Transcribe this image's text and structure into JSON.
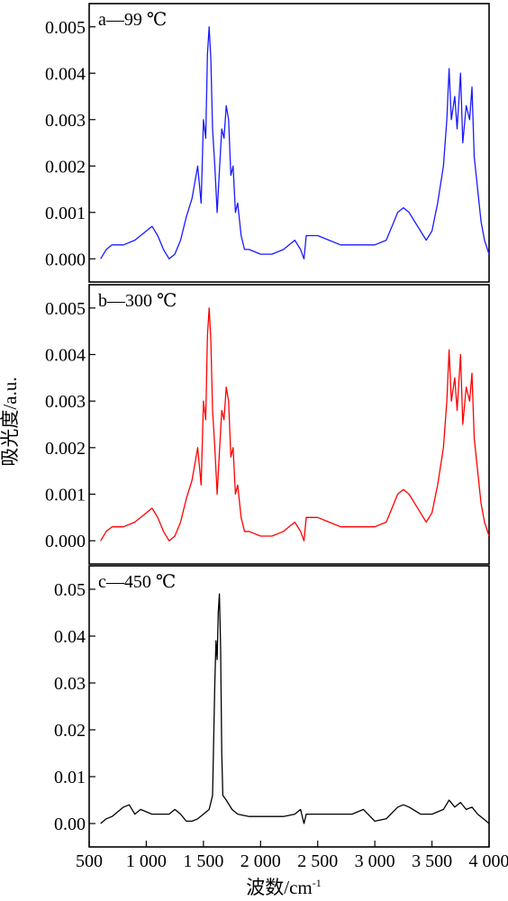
{
  "chart_data": {
    "type": "line",
    "figure_xlabel": "波数/cm",
    "figure_xlabel_sup": "-1",
    "figure_ylabel": "吸光度/a.u.",
    "x_range": [
      500,
      4000
    ],
    "x_ticks": [
      500,
      1000,
      1500,
      2000,
      2500,
      3000,
      3500,
      4000
    ],
    "x_tick_labels": [
      "500",
      "1 000",
      "1 500",
      "2 000",
      "2 500",
      "3 000",
      "3 500",
      "4 000"
    ],
    "panels": [
      {
        "label": "a—99 ℃",
        "color": "#1a1aff",
        "ylim": [
          -0.0005,
          0.0055
        ],
        "y_ticks": [
          0.0,
          0.001,
          0.002,
          0.003,
          0.004,
          0.005
        ],
        "y_tick_labels": [
          "0.000",
          "0.001",
          "0.002",
          "0.003",
          "0.004",
          "0.005"
        ],
        "points": [
          [
            600,
            0.0
          ],
          [
            650,
            0.0002
          ],
          [
            700,
            0.0003
          ],
          [
            800,
            0.0003
          ],
          [
            900,
            0.0004
          ],
          [
            1000,
            0.0006
          ],
          [
            1050,
            0.0007
          ],
          [
            1100,
            0.0005
          ],
          [
            1150,
            0.0002
          ],
          [
            1200,
            0.0
          ],
          [
            1250,
            0.0001
          ],
          [
            1300,
            0.0004
          ],
          [
            1350,
            0.0009
          ],
          [
            1400,
            0.0013
          ],
          [
            1450,
            0.002
          ],
          [
            1480,
            0.0012
          ],
          [
            1500,
            0.003
          ],
          [
            1520,
            0.0026
          ],
          [
            1535,
            0.0044
          ],
          [
            1550,
            0.005
          ],
          [
            1565,
            0.0043
          ],
          [
            1580,
            0.0028
          ],
          [
            1600,
            0.002
          ],
          [
            1620,
            0.001
          ],
          [
            1640,
            0.0019
          ],
          [
            1660,
            0.0028
          ],
          [
            1680,
            0.0026
          ],
          [
            1700,
            0.0033
          ],
          [
            1720,
            0.003
          ],
          [
            1740,
            0.0018
          ],
          [
            1760,
            0.002
          ],
          [
            1780,
            0.001
          ],
          [
            1800,
            0.0012
          ],
          [
            1830,
            0.0005
          ],
          [
            1860,
            0.0002
          ],
          [
            1900,
            0.0002
          ],
          [
            2000,
            0.0001
          ],
          [
            2100,
            0.0001
          ],
          [
            2200,
            0.0002
          ],
          [
            2300,
            0.0004
          ],
          [
            2350,
            0.0002
          ],
          [
            2380,
            0.0
          ],
          [
            2400,
            0.0005
          ],
          [
            2500,
            0.0005
          ],
          [
            2600,
            0.0004
          ],
          [
            2700,
            0.0003
          ],
          [
            2800,
            0.0003
          ],
          [
            2900,
            0.0003
          ],
          [
            3000,
            0.0003
          ],
          [
            3100,
            0.0004
          ],
          [
            3150,
            0.0007
          ],
          [
            3200,
            0.001
          ],
          [
            3250,
            0.0011
          ],
          [
            3300,
            0.001
          ],
          [
            3350,
            0.0008
          ],
          [
            3400,
            0.0006
          ],
          [
            3450,
            0.0004
          ],
          [
            3500,
            0.0006
          ],
          [
            3550,
            0.0012
          ],
          [
            3600,
            0.002
          ],
          [
            3630,
            0.003
          ],
          [
            3650,
            0.0041
          ],
          [
            3670,
            0.003
          ],
          [
            3700,
            0.0035
          ],
          [
            3720,
            0.0028
          ],
          [
            3750,
            0.004
          ],
          [
            3770,
            0.0025
          ],
          [
            3800,
            0.0033
          ],
          [
            3830,
            0.003
          ],
          [
            3850,
            0.0037
          ],
          [
            3870,
            0.0022
          ],
          [
            3900,
            0.0015
          ],
          [
            3930,
            0.0008
          ],
          [
            3960,
            0.0004
          ],
          [
            4000,
            0.0001
          ]
        ]
      },
      {
        "label": "b—300 ℃",
        "color": "#ff0000",
        "ylim": [
          -0.0005,
          0.0055
        ],
        "y_ticks": [
          0.0,
          0.001,
          0.002,
          0.003,
          0.004,
          0.005
        ],
        "y_tick_labels": [
          "0.000",
          "0.001",
          "0.002",
          "0.003",
          "0.004",
          "0.005"
        ],
        "points": [
          [
            600,
            0.0
          ],
          [
            650,
            0.0002
          ],
          [
            700,
            0.0003
          ],
          [
            800,
            0.0003
          ],
          [
            900,
            0.0004
          ],
          [
            1000,
            0.0006
          ],
          [
            1050,
            0.0007
          ],
          [
            1100,
            0.0005
          ],
          [
            1150,
            0.0002
          ],
          [
            1200,
            0.0
          ],
          [
            1250,
            0.0001
          ],
          [
            1300,
            0.0004
          ],
          [
            1350,
            0.0009
          ],
          [
            1400,
            0.0013
          ],
          [
            1450,
            0.002
          ],
          [
            1480,
            0.0012
          ],
          [
            1500,
            0.003
          ],
          [
            1520,
            0.0026
          ],
          [
            1535,
            0.0044
          ],
          [
            1550,
            0.005
          ],
          [
            1565,
            0.0043
          ],
          [
            1580,
            0.0028
          ],
          [
            1600,
            0.002
          ],
          [
            1620,
            0.001
          ],
          [
            1640,
            0.0019
          ],
          [
            1660,
            0.0028
          ],
          [
            1680,
            0.0026
          ],
          [
            1700,
            0.0033
          ],
          [
            1720,
            0.003
          ],
          [
            1740,
            0.0018
          ],
          [
            1760,
            0.002
          ],
          [
            1780,
            0.001
          ],
          [
            1800,
            0.0012
          ],
          [
            1830,
            0.0005
          ],
          [
            1860,
            0.0002
          ],
          [
            1900,
            0.0002
          ],
          [
            2000,
            0.0001
          ],
          [
            2100,
            0.0001
          ],
          [
            2200,
            0.0002
          ],
          [
            2300,
            0.0004
          ],
          [
            2350,
            0.0002
          ],
          [
            2380,
            0.0
          ],
          [
            2400,
            0.0005
          ],
          [
            2500,
            0.0005
          ],
          [
            2600,
            0.0004
          ],
          [
            2700,
            0.0003
          ],
          [
            2800,
            0.0003
          ],
          [
            2900,
            0.0003
          ],
          [
            3000,
            0.0003
          ],
          [
            3100,
            0.0004
          ],
          [
            3150,
            0.0007
          ],
          [
            3200,
            0.001
          ],
          [
            3250,
            0.0011
          ],
          [
            3300,
            0.001
          ],
          [
            3350,
            0.0008
          ],
          [
            3400,
            0.0006
          ],
          [
            3450,
            0.0004
          ],
          [
            3500,
            0.0006
          ],
          [
            3550,
            0.0012
          ],
          [
            3600,
            0.002
          ],
          [
            3630,
            0.003
          ],
          [
            3650,
            0.0041
          ],
          [
            3670,
            0.003
          ],
          [
            3700,
            0.0035
          ],
          [
            3720,
            0.0028
          ],
          [
            3750,
            0.004
          ],
          [
            3770,
            0.0025
          ],
          [
            3800,
            0.0033
          ],
          [
            3830,
            0.003
          ],
          [
            3850,
            0.0036
          ],
          [
            3870,
            0.0022
          ],
          [
            3900,
            0.0015
          ],
          [
            3930,
            0.0008
          ],
          [
            3960,
            0.0004
          ],
          [
            4000,
            0.0001
          ]
        ]
      },
      {
        "label": "c—450 ℃",
        "color": "#000000",
        "ylim": [
          -0.005,
          0.055
        ],
        "y_ticks": [
          0.0,
          0.01,
          0.02,
          0.03,
          0.04,
          0.05
        ],
        "y_tick_labels": [
          "0.00",
          "0.01",
          "0.02",
          "0.03",
          "0.04",
          "0.05"
        ],
        "points": [
          [
            600,
            0.0
          ],
          [
            650,
            0.001
          ],
          [
            700,
            0.0015
          ],
          [
            750,
            0.0025
          ],
          [
            800,
            0.0035
          ],
          [
            850,
            0.004
          ],
          [
            900,
            0.002
          ],
          [
            950,
            0.003
          ],
          [
            1000,
            0.0025
          ],
          [
            1050,
            0.002
          ],
          [
            1100,
            0.002
          ],
          [
            1200,
            0.002
          ],
          [
            1250,
            0.003
          ],
          [
            1300,
            0.002
          ],
          [
            1350,
            0.0005
          ],
          [
            1400,
            0.0005
          ],
          [
            1450,
            0.001
          ],
          [
            1500,
            0.002
          ],
          [
            1550,
            0.003
          ],
          [
            1580,
            0.006
          ],
          [
            1600,
            0.03
          ],
          [
            1610,
            0.039
          ],
          [
            1620,
            0.035
          ],
          [
            1630,
            0.045
          ],
          [
            1640,
            0.049
          ],
          [
            1650,
            0.038
          ],
          [
            1660,
            0.015
          ],
          [
            1670,
            0.006
          ],
          [
            1700,
            0.005
          ],
          [
            1750,
            0.003
          ],
          [
            1800,
            0.002
          ],
          [
            1900,
            0.0015
          ],
          [
            2000,
            0.0015
          ],
          [
            2100,
            0.0015
          ],
          [
            2200,
            0.0015
          ],
          [
            2300,
            0.002
          ],
          [
            2350,
            0.003
          ],
          [
            2380,
            0.0
          ],
          [
            2400,
            0.002
          ],
          [
            2500,
            0.002
          ],
          [
            2600,
            0.002
          ],
          [
            2700,
            0.002
          ],
          [
            2800,
            0.002
          ],
          [
            2900,
            0.003
          ],
          [
            3000,
            0.0005
          ],
          [
            3100,
            0.001
          ],
          [
            3200,
            0.0035
          ],
          [
            3250,
            0.004
          ],
          [
            3300,
            0.0035
          ],
          [
            3400,
            0.002
          ],
          [
            3500,
            0.002
          ],
          [
            3600,
            0.003
          ],
          [
            3650,
            0.005
          ],
          [
            3700,
            0.0035
          ],
          [
            3750,
            0.0045
          ],
          [
            3800,
            0.003
          ],
          [
            3850,
            0.0035
          ],
          [
            3900,
            0.002
          ],
          [
            3950,
            0.001
          ],
          [
            4000,
            0.0
          ]
        ]
      }
    ]
  }
}
